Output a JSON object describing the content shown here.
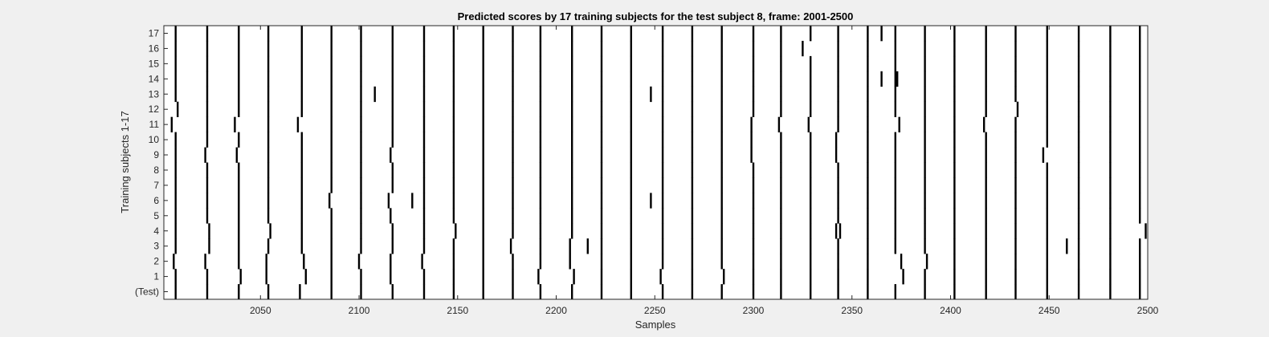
{
  "chart_data": {
    "type": "heatmap",
    "title": "Predicted scores by 17 training subjects for the test subject 8, frame: 2001-2500",
    "xlabel": "Samples",
    "ylabel": "Training subjects 1-17",
    "xlim": [
      2001,
      2500
    ],
    "xticks": [
      2050,
      2100,
      2150,
      2200,
      2250,
      2300,
      2350,
      2400,
      2450,
      2500
    ],
    "yticklabels": [
      "(Test)",
      "1",
      "2",
      "3",
      "4",
      "5",
      "6",
      "7",
      "8",
      "9",
      "10",
      "11",
      "12",
      "13",
      "14",
      "15",
      "16",
      "17"
    ],
    "grid": false,
    "colors": {
      "background": "#ffffff",
      "mark": "#000000",
      "figure": "#f0f0f0"
    },
    "base_events": [
      2007,
      2023,
      2039,
      2054,
      2071,
      2086,
      2101,
      2117,
      2133,
      2148,
      2163,
      2178,
      2192,
      2208,
      2223,
      2238,
      2254,
      2269,
      2284,
      2300,
      2314,
      2329,
      2343,
      2358,
      2372,
      2387,
      2402,
      2418,
      2433,
      2449,
      2465,
      2481,
      2496
    ],
    "row_offsets": [
      [
        0,
        0,
        0,
        0,
        -1,
        0,
        0,
        0,
        0,
        0,
        0,
        0,
        0,
        0,
        0,
        0,
        0,
        0,
        0,
        0,
        0,
        0,
        0,
        0,
        0,
        0,
        0,
        0,
        0,
        0,
        0,
        0,
        0
      ],
      [
        0,
        0,
        1,
        -1,
        2,
        0,
        0,
        -1,
        0,
        0,
        0,
        0,
        -1,
        1,
        0,
        0,
        -1,
        0,
        1,
        0,
        0,
        0,
        0,
        0,
        4,
        0,
        0,
        0,
        0,
        0,
        0,
        0,
        0
      ],
      [
        -1,
        -1,
        0,
        -1,
        1,
        0,
        -1,
        -1,
        -1,
        0,
        0,
        0,
        0,
        -1,
        0,
        0,
        0,
        0,
        0,
        0,
        0,
        0,
        0,
        0,
        3,
        1,
        0,
        0,
        0,
        0,
        0,
        0,
        0
      ],
      [
        0,
        1,
        0,
        0,
        0,
        0,
        0,
        0,
        0,
        0,
        0,
        -1,
        0,
        -1,
        0,
        0,
        0,
        0,
        0,
        0,
        0,
        0,
        0,
        0,
        0,
        0,
        0,
        0,
        0,
        0,
        0,
        0,
        0
      ],
      [
        0,
        1,
        0,
        1,
        0,
        0,
        0,
        0,
        0,
        1,
        0,
        0,
        0,
        0,
        0,
        0,
        0,
        0,
        0,
        0,
        0,
        0,
        -1,
        0,
        0,
        0,
        0,
        0,
        0,
        0,
        0,
        0,
        3
      ],
      [
        0,
        0,
        0,
        0,
        0,
        0,
        0,
        -1,
        0,
        0,
        0,
        0,
        0,
        0,
        0,
        0,
        0,
        0,
        0,
        0,
        0,
        0,
        0,
        0,
        0,
        0,
        0,
        0,
        0,
        0,
        0,
        0,
        0
      ],
      [
        0,
        0,
        0,
        0,
        0,
        -1,
        0,
        -2,
        0,
        0,
        0,
        0,
        0,
        0,
        0,
        0,
        0,
        0,
        0,
        0,
        0,
        0,
        0,
        0,
        0,
        0,
        0,
        0,
        0,
        0,
        0,
        0,
        0
      ],
      [
        0,
        0,
        0,
        0,
        0,
        0,
        0,
        0,
        0,
        0,
        0,
        0,
        0,
        0,
        0,
        0,
        0,
        0,
        0,
        0,
        0,
        0,
        0,
        0,
        0,
        0,
        0,
        0,
        0,
        0,
        0,
        0,
        0
      ],
      [
        0,
        0,
        0,
        0,
        0,
        0,
        0,
        0,
        0,
        0,
        0,
        0,
        0,
        0,
        0,
        0,
        0,
        0,
        0,
        0,
        0,
        0,
        0,
        0,
        0,
        0,
        0,
        0,
        0,
        0,
        0,
        0,
        0
      ],
      [
        0,
        -1,
        -1,
        0,
        0,
        0,
        0,
        -1,
        0,
        0,
        0,
        0,
        0,
        0,
        0,
        0,
        0,
        0,
        0,
        -1,
        0,
        0,
        -1,
        0,
        0,
        0,
        0,
        0,
        0,
        -2,
        0,
        0,
        0
      ],
      [
        0,
        0,
        0,
        0,
        0,
        0,
        0,
        0,
        0,
        0,
        0,
        0,
        0,
        0,
        0,
        0,
        0,
        0,
        0,
        -1,
        0,
        0,
        -1,
        0,
        0,
        0,
        0,
        0,
        0,
        0,
        0,
        0,
        0
      ],
      [
        -2,
        0,
        -2,
        0,
        -2,
        0,
        0,
        0,
        0,
        0,
        0,
        0,
        0,
        0,
        0,
        0,
        0,
        0,
        0,
        -1,
        -1,
        -1,
        0,
        0,
        2,
        0,
        0,
        -1,
        0,
        0,
        0,
        0,
        0
      ],
      [
        1,
        0,
        0,
        0,
        0,
        0,
        0,
        0,
        0,
        0,
        0,
        0,
        0,
        0,
        0,
        0,
        0,
        0,
        0,
        0,
        0,
        0,
        0,
        0,
        0,
        0,
        0,
        0,
        1,
        0,
        0,
        0,
        0
      ],
      [
        0,
        0,
        0,
        0,
        0,
        0,
        0,
        0,
        0,
        0,
        0,
        0,
        0,
        0,
        0,
        0,
        0,
        0,
        0,
        0,
        0,
        0,
        0,
        0,
        0,
        0,
        0,
        0,
        0,
        0,
        0,
        0,
        0
      ],
      [
        0,
        0,
        0,
        0,
        0,
        0,
        0,
        0,
        0,
        0,
        0,
        0,
        0,
        0,
        0,
        0,
        0,
        0,
        0,
        0,
        0,
        0,
        0,
        0,
        0,
        0,
        0,
        0,
        0,
        0,
        0,
        0,
        0
      ],
      [
        0,
        0,
        0,
        0,
        0,
        0,
        0,
        0,
        0,
        0,
        0,
        0,
        0,
        0,
        0,
        0,
        0,
        0,
        0,
        0,
        0,
        0,
        0,
        0,
        0,
        0,
        0,
        0,
        0,
        0,
        0,
        0,
        0
      ],
      [
        0,
        0,
        0,
        0,
        0,
        0,
        0,
        0,
        0,
        0,
        0,
        0,
        0,
        0,
        0,
        0,
        0,
        0,
        0,
        0,
        0,
        -4,
        0,
        0,
        0,
        0,
        0,
        0,
        0,
        0,
        0,
        0,
        0
      ],
      [
        0,
        0,
        0,
        0,
        0,
        0,
        0,
        0,
        0,
        0,
        0,
        0,
        0,
        0,
        0,
        0,
        0,
        0,
        0,
        0,
        0,
        0,
        0,
        0,
        0,
        0,
        0,
        0,
        0,
        0,
        0,
        0,
        0
      ]
    ],
    "extra_marks": [
      {
        "row": 13,
        "x": 2108
      },
      {
        "row": 13,
        "x": 2248
      },
      {
        "row": 14,
        "x": 2365
      },
      {
        "row": 14,
        "x": 2373
      },
      {
        "row": 6,
        "x": 2127
      },
      {
        "row": 6,
        "x": 2248
      },
      {
        "row": 3,
        "x": 2216
      },
      {
        "row": 3,
        "x": 2459
      },
      {
        "row": 17,
        "x": 2365
      },
      {
        "row": 4,
        "x": 2344
      }
    ]
  }
}
